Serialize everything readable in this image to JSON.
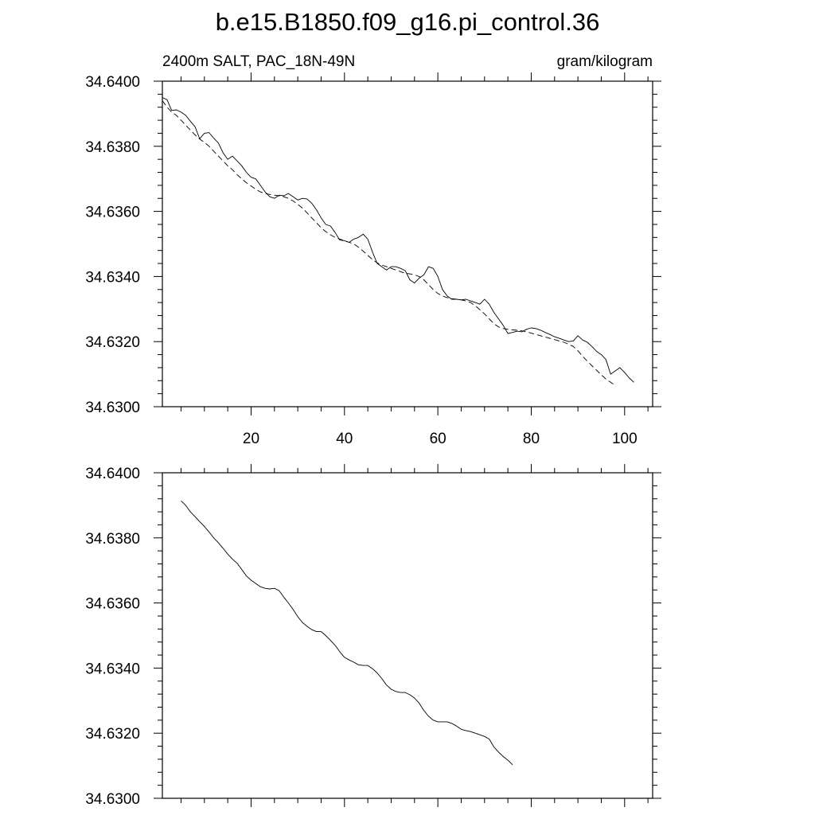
{
  "figure": {
    "title": "b.e15.B1850.f09_g16.pi_control.36",
    "left_string": "2400m SALT, PAC_18N-49N",
    "right_string": "gram/kilogram"
  },
  "chart_data": [
    {
      "type": "line",
      "xlim": [
        1,
        106
      ],
      "ylim": [
        34.63,
        34.64
      ],
      "x_ticks": [
        20,
        40,
        60,
        80,
        100
      ],
      "x_tick_labels": [
        "20",
        "40",
        "60",
        "80",
        "100"
      ],
      "y_ticks": [
        34.63,
        34.632,
        34.634,
        34.636,
        34.638,
        34.64
      ],
      "y_tick_labels": [
        "34.6300",
        "34.6320",
        "34.6340",
        "34.6360",
        "34.6380",
        "34.6400"
      ],
      "x_start": 1,
      "series": [
        {
          "style": "solid",
          "values": [
            34.6395,
            34.63943,
            34.6391,
            34.63912,
            34.63905,
            34.63895,
            34.63877,
            34.6386,
            34.63823,
            34.6384,
            34.63842,
            34.63825,
            34.6381,
            34.6378,
            34.6376,
            34.6377,
            34.63755,
            34.6374,
            34.6372,
            34.63705,
            34.637,
            34.6368,
            34.6366,
            34.63645,
            34.6364,
            34.6365,
            34.63648,
            34.63655,
            34.63645,
            34.63635,
            34.6364,
            34.63638,
            34.63625,
            34.63605,
            34.6358,
            34.6356,
            34.63555,
            34.63535,
            34.63512,
            34.6351,
            34.63505,
            34.63515,
            34.6352,
            34.6353,
            34.63515,
            34.63475,
            34.6344,
            34.6343,
            34.6342,
            34.6343,
            34.6343,
            34.63425,
            34.63418,
            34.6339,
            34.6338,
            34.63395,
            34.63405,
            34.6343,
            34.63425,
            34.634,
            34.6336,
            34.6334,
            34.6333,
            34.6333,
            34.63328,
            34.6333,
            34.63325,
            34.6332,
            34.63315,
            34.6333,
            34.63315,
            34.6329,
            34.6327,
            34.6325,
            34.63225,
            34.63228,
            34.63232,
            34.6323,
            34.63238,
            34.63242,
            34.6324,
            34.63235,
            34.63228,
            34.63222,
            34.63215,
            34.6321,
            34.63205,
            34.632,
            34.63202,
            34.63218,
            34.63205,
            34.63198,
            34.63185,
            34.6317,
            34.6316,
            34.63145,
            34.631,
            34.6311,
            34.6312,
            34.63105,
            34.63088,
            34.63075
          ]
        },
        {
          "style": "dashed",
          "values": [
            34.6394,
            34.6392,
            34.63905,
            34.63895,
            34.6388,
            34.63865,
            34.6385,
            34.63835,
            34.63822,
            34.63812,
            34.638,
            34.63785,
            34.6377,
            34.63755,
            34.6374,
            34.63728,
            34.63713,
            34.637,
            34.63688,
            34.63678,
            34.63668,
            34.6366,
            34.63655,
            34.63652,
            34.6365,
            34.63648,
            34.63645,
            34.6364,
            34.63632,
            34.63622,
            34.6361,
            34.63595,
            34.6358,
            34.63565,
            34.6355,
            34.63538,
            34.63528,
            34.6352,
            34.63515,
            34.6351,
            34.63505,
            34.635,
            34.6349,
            34.63478,
            34.63465,
            34.63452,
            34.63442,
            34.63435,
            34.6343,
            34.63425,
            34.6342,
            34.63415,
            34.6341,
            34.63408,
            34.63405,
            34.634,
            34.6339,
            34.63375,
            34.6336,
            34.63348,
            34.6334,
            34.63335,
            34.63332,
            34.6333,
            34.63328,
            34.63325,
            34.6332,
            34.6331,
            34.63298,
            34.63285,
            34.6327,
            34.63255,
            34.63245,
            34.6324,
            34.63238,
            34.63236,
            34.63235,
            34.63233,
            34.6323,
            34.63226,
            34.63222,
            34.63218,
            34.63214,
            34.6321,
            34.63206,
            34.63202,
            34.63198,
            34.63192,
            34.63185,
            34.63172,
            34.63155,
            34.6314,
            34.63126,
            34.63112,
            34.63098,
            34.63085,
            34.63075,
            34.63065
          ]
        }
      ]
    },
    {
      "type": "line",
      "xlim": [
        1,
        106
      ],
      "ylim": [
        34.63,
        34.64
      ],
      "x_ticks": [
        20,
        40,
        60,
        80,
        100
      ],
      "y_ticks": [
        34.63,
        34.632,
        34.634,
        34.636,
        34.638,
        34.64
      ],
      "y_tick_labels": [
        "34.6300",
        "34.6320",
        "34.6340",
        "34.6360",
        "34.6380",
        "34.6400"
      ],
      "x_start": 5,
      "series": [
        {
          "style": "solid",
          "values": [
            34.63914,
            34.639,
            34.6388,
            34.63865,
            34.6385,
            34.63835,
            34.63818,
            34.638,
            34.63785,
            34.63768,
            34.6375,
            34.63735,
            34.63722,
            34.63703,
            34.63683,
            34.6367,
            34.6366,
            34.6365,
            34.63645,
            34.63643,
            34.63645,
            34.63638,
            34.63618,
            34.636,
            34.6358,
            34.63558,
            34.6354,
            34.63528,
            34.63518,
            34.63512,
            34.63512,
            34.635,
            34.63485,
            34.6347,
            34.6345,
            34.63433,
            34.63425,
            34.63418,
            34.6341,
            34.63408,
            34.63408,
            34.63398,
            34.63385,
            34.63368,
            34.63348,
            34.63335,
            34.63328,
            34.63325,
            34.63325,
            34.63318,
            34.63308,
            34.63292,
            34.6327,
            34.63252,
            34.6324,
            34.63235,
            34.63235,
            34.63235,
            34.6323,
            34.63222,
            34.63212,
            34.63208,
            34.63205,
            34.632,
            34.63195,
            34.6319,
            34.63182,
            34.63158,
            34.63142,
            34.63128,
            34.63117,
            34.63103
          ]
        }
      ]
    }
  ]
}
